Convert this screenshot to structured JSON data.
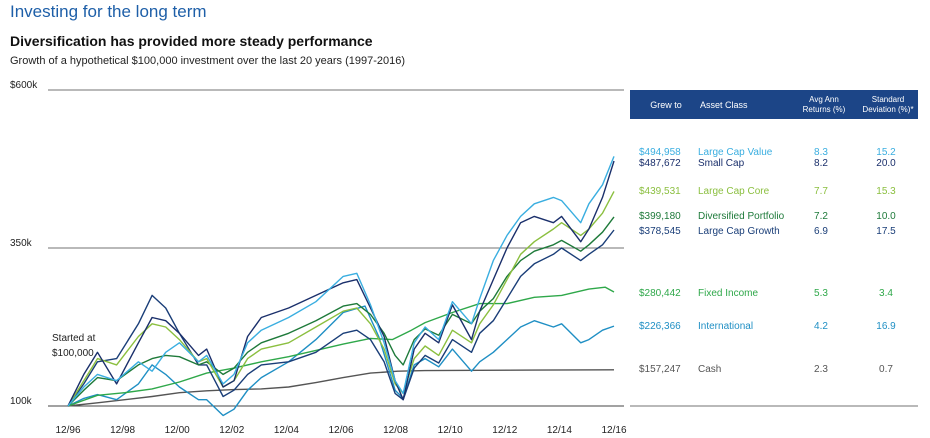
{
  "header": {
    "title": "Investing for the long term",
    "subtitle": "Diversification has provided more steady performance",
    "caption": "Growth of a hypothetical $100,000 investment over the last 20 years (1997-2016)"
  },
  "colors": {
    "title_blue": "#1e5fa8",
    "table_header": "#1c4587",
    "large_cap_value": "#3aaee0",
    "small_cap": "#1a2f6b",
    "large_cap_core": "#8bbf3f",
    "diversified_portfolio": "#1e7a3a",
    "large_cap_growth": "#1a3e78",
    "fixed_income": "#2fa84a",
    "international": "#1f8fc4",
    "cash": "#555555"
  },
  "chart_data": {
    "type": "line",
    "x_ticks": [
      "12/96",
      "12/98",
      "12/00",
      "12/02",
      "12/04",
      "12/06",
      "12/08",
      "12/10",
      "12/12",
      "12/14",
      "12/16"
    ],
    "y_ticks": [
      {
        "label": "$600k",
        "value": 600000
      },
      {
        "label": "350k",
        "value": 350000
      },
      {
        "label": "100k",
        "value": 100000
      }
    ],
    "ylim": [
      100000,
      600000
    ],
    "start_annotation": [
      "Started at",
      "$100,000"
    ],
    "table_headers": [
      "Grew to",
      "Asset Class",
      "Avg Ann Returns (%)",
      "Standard Deviation (%)*"
    ],
    "series": [
      {
        "name": "Large Cap Value",
        "grew_to": "$494,958",
        "avg_ann_return": "8.3",
        "std_dev": "15.2",
        "color_key": "large_cap_value",
        "points": [
          [
            1996.92,
            100000
          ],
          [
            1997.5,
            130000
          ],
          [
            1998,
            150000
          ],
          [
            1998.7,
            140000
          ],
          [
            1999.5,
            170000
          ],
          [
            2000,
            155000
          ],
          [
            2000.5,
            185000
          ],
          [
            2001,
            200000
          ],
          [
            2001.7,
            170000
          ],
          [
            2002,
            180000
          ],
          [
            2002.6,
            135000
          ],
          [
            2003,
            150000
          ],
          [
            2003.5,
            200000
          ],
          [
            2004,
            220000
          ],
          [
            2005,
            240000
          ],
          [
            2006,
            265000
          ],
          [
            2007,
            305000
          ],
          [
            2007.5,
            310000
          ],
          [
            2008,
            260000
          ],
          [
            2008.5,
            200000
          ],
          [
            2008.9,
            140000
          ],
          [
            2009.2,
            120000
          ],
          [
            2009.6,
            200000
          ],
          [
            2010,
            225000
          ],
          [
            2010.5,
            205000
          ],
          [
            2011,
            265000
          ],
          [
            2011.7,
            230000
          ],
          [
            2012,
            270000
          ],
          [
            2012.5,
            330000
          ],
          [
            2013,
            370000
          ],
          [
            2013.5,
            400000
          ],
          [
            2014,
            420000
          ],
          [
            2014.7,
            430000
          ],
          [
            2015,
            425000
          ],
          [
            2015.7,
            390000
          ],
          [
            2016,
            420000
          ],
          [
            2016.5,
            450000
          ],
          [
            2016.92,
            494958
          ]
        ]
      },
      {
        "name": "Small Cap",
        "grew_to": "$487,672",
        "avg_ann_return": "8.2",
        "std_dev": "20.0",
        "color_key": "small_cap",
        "points": [
          [
            1996.92,
            100000
          ],
          [
            1997.5,
            150000
          ],
          [
            1998,
            185000
          ],
          [
            1998.7,
            135000
          ],
          [
            1999.5,
            200000
          ],
          [
            2000,
            240000
          ],
          [
            2000.5,
            235000
          ],
          [
            2001,
            215000
          ],
          [
            2001.7,
            180000
          ],
          [
            2002,
            190000
          ],
          [
            2002.6,
            130000
          ],
          [
            2003,
            140000
          ],
          [
            2003.5,
            210000
          ],
          [
            2004,
            240000
          ],
          [
            2005,
            255000
          ],
          [
            2006,
            275000
          ],
          [
            2007,
            295000
          ],
          [
            2007.5,
            300000
          ],
          [
            2008,
            255000
          ],
          [
            2008.5,
            210000
          ],
          [
            2008.9,
            140000
          ],
          [
            2009.2,
            110000
          ],
          [
            2009.6,
            190000
          ],
          [
            2010,
            215000
          ],
          [
            2010.5,
            200000
          ],
          [
            2011,
            260000
          ],
          [
            2011.7,
            205000
          ],
          [
            2012,
            250000
          ],
          [
            2012.5,
            300000
          ],
          [
            2013,
            350000
          ],
          [
            2013.5,
            390000
          ],
          [
            2014,
            400000
          ],
          [
            2014.7,
            390000
          ],
          [
            2015,
            400000
          ],
          [
            2015.7,
            360000
          ],
          [
            2016,
            380000
          ],
          [
            2016.5,
            430000
          ],
          [
            2016.92,
            487672
          ]
        ]
      },
      {
        "name": "Large Cap Core",
        "grew_to": "$439,531",
        "avg_ann_return": "7.7",
        "std_dev": "15.3",
        "color_key": "large_cap_core",
        "points": [
          [
            1996.92,
            100000
          ],
          [
            1997.5,
            140000
          ],
          [
            1998,
            175000
          ],
          [
            1998.7,
            165000
          ],
          [
            1999.5,
            210000
          ],
          [
            2000,
            230000
          ],
          [
            2000.5,
            225000
          ],
          [
            2001,
            205000
          ],
          [
            2001.7,
            170000
          ],
          [
            2002,
            175000
          ],
          [
            2002.6,
            130000
          ],
          [
            2003,
            140000
          ],
          [
            2003.5,
            175000
          ],
          [
            2004,
            190000
          ],
          [
            2005,
            200000
          ],
          [
            2006,
            225000
          ],
          [
            2007,
            250000
          ],
          [
            2007.5,
            255000
          ],
          [
            2008,
            230000
          ],
          [
            2008.5,
            190000
          ],
          [
            2008.9,
            135000
          ],
          [
            2009.2,
            120000
          ],
          [
            2009.6,
            175000
          ],
          [
            2010,
            195000
          ],
          [
            2010.5,
            180000
          ],
          [
            2011,
            220000
          ],
          [
            2011.7,
            200000
          ],
          [
            2012,
            230000
          ],
          [
            2012.5,
            260000
          ],
          [
            2013,
            300000
          ],
          [
            2013.5,
            340000
          ],
          [
            2014,
            360000
          ],
          [
            2014.7,
            380000
          ],
          [
            2015,
            390000
          ],
          [
            2015.7,
            370000
          ],
          [
            2016,
            380000
          ],
          [
            2016.5,
            405000
          ],
          [
            2016.92,
            439531
          ]
        ]
      },
      {
        "name": "Diversified Portfolio",
        "grew_to": "$399,180",
        "avg_ann_return": "7.2",
        "std_dev": "10.0",
        "color_key": "diversified_portfolio",
        "points": [
          [
            1996.92,
            100000
          ],
          [
            1997.5,
            125000
          ],
          [
            1998,
            145000
          ],
          [
            1998.7,
            140000
          ],
          [
            1999.5,
            165000
          ],
          [
            2000,
            175000
          ],
          [
            2000.5,
            180000
          ],
          [
            2001,
            178000
          ],
          [
            2001.7,
            165000
          ],
          [
            2002,
            170000
          ],
          [
            2002.6,
            150000
          ],
          [
            2003,
            160000
          ],
          [
            2003.5,
            185000
          ],
          [
            2004,
            200000
          ],
          [
            2005,
            215000
          ],
          [
            2006,
            235000
          ],
          [
            2007,
            258000
          ],
          [
            2007.5,
            262000
          ],
          [
            2008,
            245000
          ],
          [
            2008.5,
            215000
          ],
          [
            2008.9,
            180000
          ],
          [
            2009.2,
            165000
          ],
          [
            2009.6,
            205000
          ],
          [
            2010,
            222000
          ],
          [
            2010.5,
            212000
          ],
          [
            2011,
            245000
          ],
          [
            2011.7,
            230000
          ],
          [
            2012,
            250000
          ],
          [
            2012.5,
            270000
          ],
          [
            2013,
            305000
          ],
          [
            2013.5,
            330000
          ],
          [
            2014,
            345000
          ],
          [
            2014.7,
            355000
          ],
          [
            2015,
            362000
          ],
          [
            2015.7,
            345000
          ],
          [
            2016,
            355000
          ],
          [
            2016.5,
            375000
          ],
          [
            2016.92,
            399180
          ]
        ]
      },
      {
        "name": "Large Cap Growth",
        "grew_to": "$378,545",
        "avg_ann_return": "6.9",
        "std_dev": "17.5",
        "color_key": "large_cap_growth",
        "points": [
          [
            1996.92,
            100000
          ],
          [
            1997.5,
            135000
          ],
          [
            1998,
            170000
          ],
          [
            1998.7,
            175000
          ],
          [
            1999.5,
            230000
          ],
          [
            2000,
            275000
          ],
          [
            2000.5,
            255000
          ],
          [
            2001,
            215000
          ],
          [
            2001.7,
            165000
          ],
          [
            2002,
            165000
          ],
          [
            2002.6,
            115000
          ],
          [
            2003,
            125000
          ],
          [
            2003.5,
            150000
          ],
          [
            2004,
            165000
          ],
          [
            2005,
            170000
          ],
          [
            2006,
            185000
          ],
          [
            2007,
            215000
          ],
          [
            2007.5,
            220000
          ],
          [
            2008,
            205000
          ],
          [
            2008.5,
            170000
          ],
          [
            2008.9,
            120000
          ],
          [
            2009.2,
            110000
          ],
          [
            2009.6,
            160000
          ],
          [
            2010,
            180000
          ],
          [
            2010.5,
            168000
          ],
          [
            2011,
            205000
          ],
          [
            2011.7,
            185000
          ],
          [
            2012,
            215000
          ],
          [
            2012.5,
            235000
          ],
          [
            2013,
            270000
          ],
          [
            2013.5,
            305000
          ],
          [
            2014,
            325000
          ],
          [
            2014.7,
            340000
          ],
          [
            2015,
            350000
          ],
          [
            2015.7,
            330000
          ],
          [
            2016,
            340000
          ],
          [
            2016.5,
            355000
          ],
          [
            2016.92,
            378545
          ]
        ]
      },
      {
        "name": "Fixed Income",
        "grew_to": "$280,442",
        "avg_ann_return": "5.3",
        "std_dev": "3.4",
        "color_key": "fixed_income",
        "points": [
          [
            1996.92,
            100000
          ],
          [
            1998,
            117000
          ],
          [
            1999,
            121000
          ],
          [
            2000,
            127000
          ],
          [
            2001,
            138000
          ],
          [
            2002,
            152000
          ],
          [
            2003,
            160000
          ],
          [
            2004,
            170000
          ],
          [
            2005,
            178000
          ],
          [
            2006,
            188000
          ],
          [
            2007,
            198000
          ],
          [
            2008,
            207000
          ],
          [
            2008.8,
            205000
          ],
          [
            2009.5,
            220000
          ],
          [
            2010,
            232000
          ],
          [
            2011,
            248000
          ],
          [
            2012,
            262000
          ],
          [
            2013,
            262000
          ],
          [
            2014,
            272000
          ],
          [
            2015,
            275000
          ],
          [
            2016,
            285000
          ],
          [
            2016.6,
            288000
          ],
          [
            2016.92,
            280442
          ]
        ]
      },
      {
        "name": "International",
        "grew_to": "$226,366",
        "avg_ann_return": "4.2",
        "std_dev": "16.9",
        "color_key": "international",
        "points": [
          [
            1996.92,
            100000
          ],
          [
            1997.5,
            112000
          ],
          [
            1998,
            118000
          ],
          [
            1998.7,
            110000
          ],
          [
            1999.5,
            135000
          ],
          [
            2000,
            165000
          ],
          [
            2000.5,
            150000
          ],
          [
            2001,
            130000
          ],
          [
            2001.7,
            110000
          ],
          [
            2002,
            110000
          ],
          [
            2002.6,
            85000
          ],
          [
            2003,
            95000
          ],
          [
            2003.5,
            125000
          ],
          [
            2004,
            145000
          ],
          [
            2005,
            170000
          ],
          [
            2006,
            205000
          ],
          [
            2007,
            248000
          ],
          [
            2007.8,
            258000
          ],
          [
            2008.3,
            210000
          ],
          [
            2008.9,
            125000
          ],
          [
            2009.2,
            112000
          ],
          [
            2009.6,
            165000
          ],
          [
            2010,
            175000
          ],
          [
            2010.5,
            162000
          ],
          [
            2011,
            190000
          ],
          [
            2011.7,
            155000
          ],
          [
            2012,
            170000
          ],
          [
            2012.5,
            185000
          ],
          [
            2013,
            205000
          ],
          [
            2013.5,
            225000
          ],
          [
            2014,
            235000
          ],
          [
            2014.7,
            225000
          ],
          [
            2015,
            230000
          ],
          [
            2015.7,
            200000
          ],
          [
            2016,
            205000
          ],
          [
            2016.5,
            220000
          ],
          [
            2016.92,
            226366
          ]
        ]
      },
      {
        "name": "Cash",
        "grew_to": "$157,247",
        "avg_ann_return": "2.3",
        "std_dev": "0.7",
        "color_key": "cash",
        "points": [
          [
            1996.92,
            100000
          ],
          [
            1998,
            105000
          ],
          [
            1999,
            110000
          ],
          [
            2000,
            115000
          ],
          [
            2001,
            121000
          ],
          [
            2002,
            124000
          ],
          [
            2003,
            126000
          ],
          [
            2004,
            127000
          ],
          [
            2005,
            130000
          ],
          [
            2006,
            137000
          ],
          [
            2007,
            145000
          ],
          [
            2008,
            152000
          ],
          [
            2009,
            155000
          ],
          [
            2010,
            156000
          ],
          [
            2012,
            156500
          ],
          [
            2014,
            156800
          ],
          [
            2016.92,
            157247
          ]
        ]
      }
    ]
  }
}
